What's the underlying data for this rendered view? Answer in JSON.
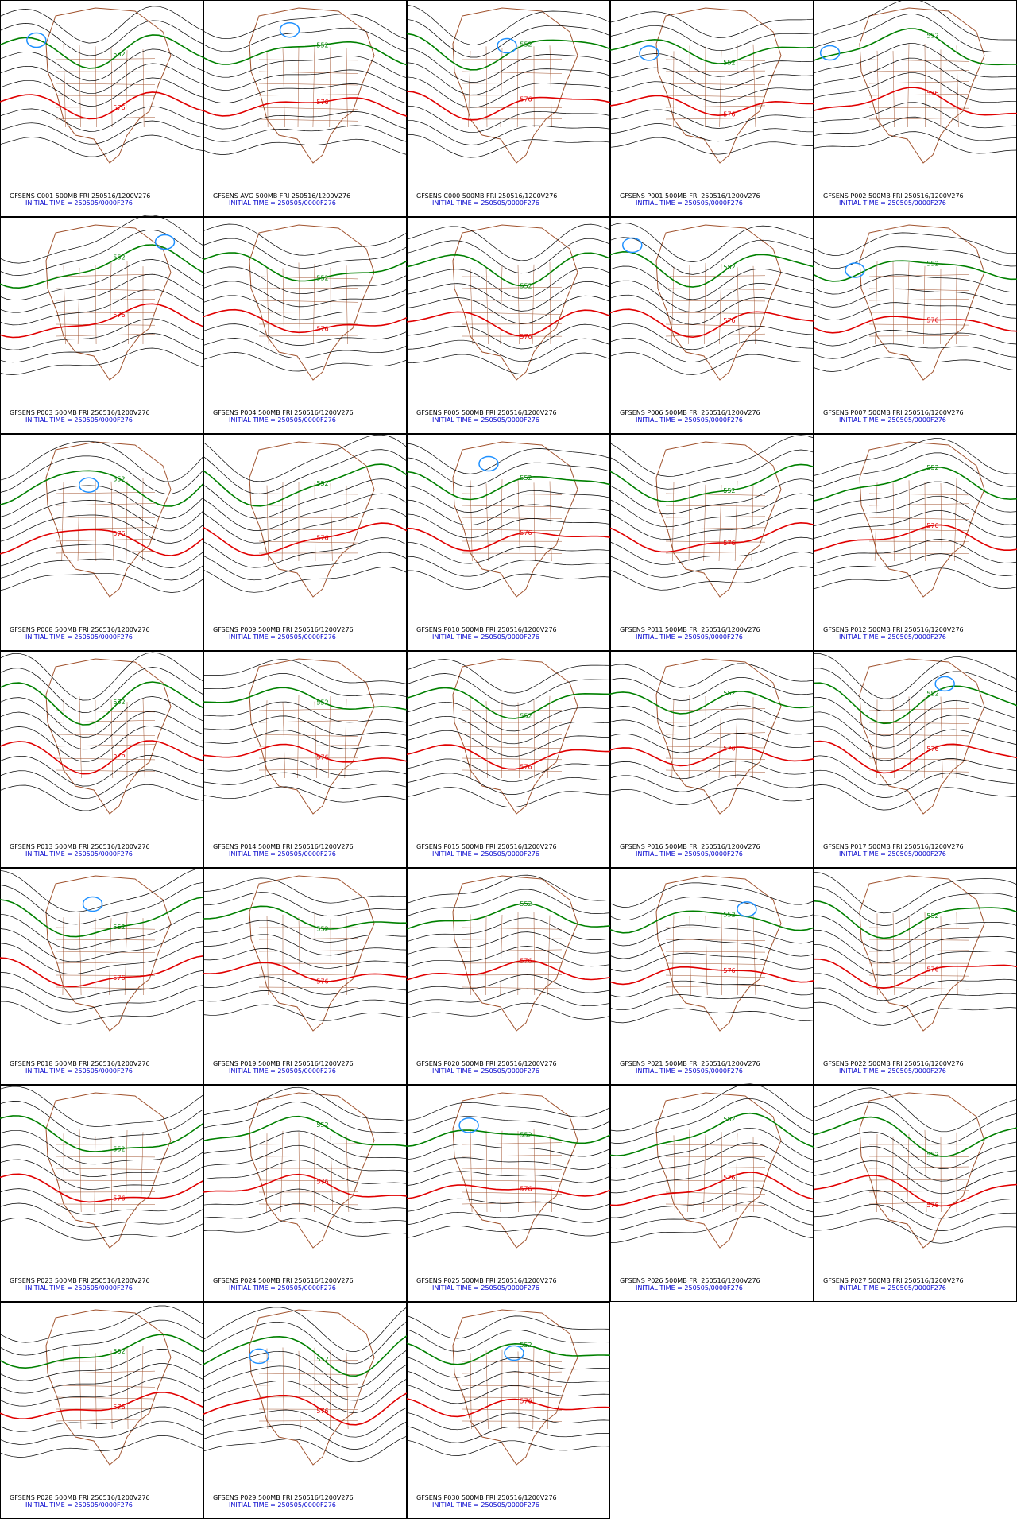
{
  "panels": [
    {
      "title": "GFSENS C001 500MB FRI 250516/1200V276",
      "subtitle": "INITIAL TIME = 250505/0000F276",
      "contour_labels": [
        "552",
        "576"
      ]
    },
    {
      "title": "GFSENS AVG 500MB FRI 250516/1200V276",
      "subtitle": "INITIAL TIME = 250505/0000F276",
      "contour_labels": [
        "552",
        "576"
      ]
    },
    {
      "title": "GFSENS C000 500MB FRI 250516/1200V276",
      "subtitle": "INITIAL TIME = 250505/0000F276",
      "contour_labels": [
        "552",
        "576"
      ]
    },
    {
      "title": "GFSENS P001 500MB FRI 250516/1200V276",
      "subtitle": "INITIAL TIME = 250505/0000F276",
      "contour_labels": [
        "552",
        "576"
      ]
    },
    {
      "title": "GFSENS P002 500MB FRI 250516/1200V276",
      "subtitle": "INITIAL TIME = 250505/0000F276",
      "contour_labels": [
        "552",
        "576"
      ]
    },
    {
      "title": "GFSENS P003 500MB FRI 250516/1200V276",
      "subtitle": "INITIAL TIME = 250505/0000F276",
      "contour_labels": [
        "552",
        "576"
      ]
    },
    {
      "title": "GFSENS P004 500MB FRI 250516/1200V276",
      "subtitle": "INITIAL TIME = 250505/0000F276",
      "contour_labels": [
        "552",
        "576"
      ]
    },
    {
      "title": "GFSENS P005 500MB FRI 250516/1200V276",
      "subtitle": "INITIAL TIME = 250505/0000F276",
      "contour_labels": [
        "552",
        "576"
      ]
    },
    {
      "title": "GFSENS P006 500MB FRI 250516/1200V276",
      "subtitle": "INITIAL TIME = 250505/0000F276",
      "contour_labels": [
        "552",
        "576"
      ]
    },
    {
      "title": "GFSENS P007 500MB FRI 250516/1200V276",
      "subtitle": "INITIAL TIME = 250505/0000F276",
      "contour_labels": [
        "552",
        "576"
      ]
    },
    {
      "title": "GFSENS P008 500MB FRI 250516/1200V276",
      "subtitle": "INITIAL TIME = 250505/0000F276",
      "contour_labels": [
        "552",
        "576"
      ]
    },
    {
      "title": "GFSENS P009 500MB FRI 250516/1200V276",
      "subtitle": "INITIAL TIME = 250505/0000F276",
      "contour_labels": [
        "552",
        "576"
      ]
    },
    {
      "title": "GFSENS P010 500MB FRI 250516/1200V276",
      "subtitle": "INITIAL TIME = 250505/0000F276",
      "contour_labels": [
        "552",
        "576"
      ]
    },
    {
      "title": "GFSENS P011 500MB FRI 250516/1200V276",
      "subtitle": "INITIAL TIME = 250505/0000F276",
      "contour_labels": [
        "552",
        "576"
      ]
    },
    {
      "title": "GFSENS P012 500MB FRI 250516/1200V276",
      "subtitle": "INITIAL TIME = 250505/0000F276",
      "contour_labels": [
        "552",
        "576"
      ]
    },
    {
      "title": "GFSENS P013 500MB FRI 250516/1200V276",
      "subtitle": "INITIAL TIME = 250505/0000F276",
      "contour_labels": [
        "552",
        "576"
      ]
    },
    {
      "title": "GFSENS P014 500MB FRI 250516/1200V276",
      "subtitle": "INITIAL TIME = 250505/0000F276",
      "contour_labels": [
        "552",
        "576"
      ]
    },
    {
      "title": "GFSENS P015 500MB FRI 250516/1200V276",
      "subtitle": "INITIAL TIME = 250505/0000F276",
      "contour_labels": [
        "552",
        "576"
      ]
    },
    {
      "title": "GFSENS P016 500MB FRI 250516/1200V276",
      "subtitle": "INITIAL TIME = 250505/0000F276",
      "contour_labels": [
        "552",
        "576"
      ]
    },
    {
      "title": "GFSENS P017 500MB FRI 250516/1200V276",
      "subtitle": "INITIAL TIME = 250505/0000F276",
      "contour_labels": [
        "552",
        "576"
      ]
    },
    {
      "title": "GFSENS P018 500MB FRI 250516/1200V276",
      "subtitle": "INITIAL TIME = 250505/0000F276",
      "contour_labels": [
        "552",
        "576"
      ]
    },
    {
      "title": "GFSENS P019 500MB FRI 250516/1200V276",
      "subtitle": "INITIAL TIME = 250505/0000F276",
      "contour_labels": [
        "552",
        "576"
      ]
    },
    {
      "title": "GFSENS P020 500MB FRI 250516/1200V276",
      "subtitle": "INITIAL TIME = 250505/0000F276",
      "contour_labels": [
        "552",
        "576"
      ]
    },
    {
      "title": "GFSENS P021 500MB FRI 250516/1200V276",
      "subtitle": "INITIAL TIME = 250505/0000F276",
      "contour_labels": [
        "552",
        "576"
      ]
    },
    {
      "title": "GFSENS P022 500MB FRI 250516/1200V276",
      "subtitle": "INITIAL TIME = 250505/0000F276",
      "contour_labels": [
        "552",
        "576"
      ]
    },
    {
      "title": "GFSENS P023 500MB FRI 250516/1200V276",
      "subtitle": "INITIAL TIME = 250505/0000F276",
      "contour_labels": [
        "552",
        "576"
      ]
    },
    {
      "title": "GFSENS P024 500MB FRI 250516/1200V276",
      "subtitle": "INITIAL TIME = 250505/0000F276",
      "contour_labels": [
        "552",
        "576"
      ]
    },
    {
      "title": "GFSENS P025 500MB FRI 250516/1200V276",
      "subtitle": "INITIAL TIME = 250505/0000F276",
      "contour_labels": [
        "552",
        "576"
      ]
    },
    {
      "title": "GFSENS P026 500MB FRI 250516/1200V276",
      "subtitle": "INITIAL TIME = 250505/0000F276",
      "contour_labels": [
        "552",
        "576"
      ]
    },
    {
      "title": "GFSENS P027 500MB FRI 250516/1200V276",
      "subtitle": "INITIAL TIME = 250505/0000F276",
      "contour_labels": [
        "552",
        "576"
      ]
    },
    {
      "title": "GFSENS P028 500MB FRI 250516/1200V276",
      "subtitle": "INITIAL TIME = 250505/0000F276",
      "contour_labels": [
        "552",
        "576"
      ]
    },
    {
      "title": "GFSENS P029 500MB FRI 250516/1200V276",
      "subtitle": "INITIAL TIME = 250505/0000F276",
      "contour_labels": [
        "552",
        "576"
      ]
    },
    {
      "title": "GFSENS P030 500MB FRI 250516/1200V276",
      "subtitle": "INITIAL TIME = 250505/0000F276",
      "contour_labels": [
        "552",
        "576"
      ]
    }
  ]
}
